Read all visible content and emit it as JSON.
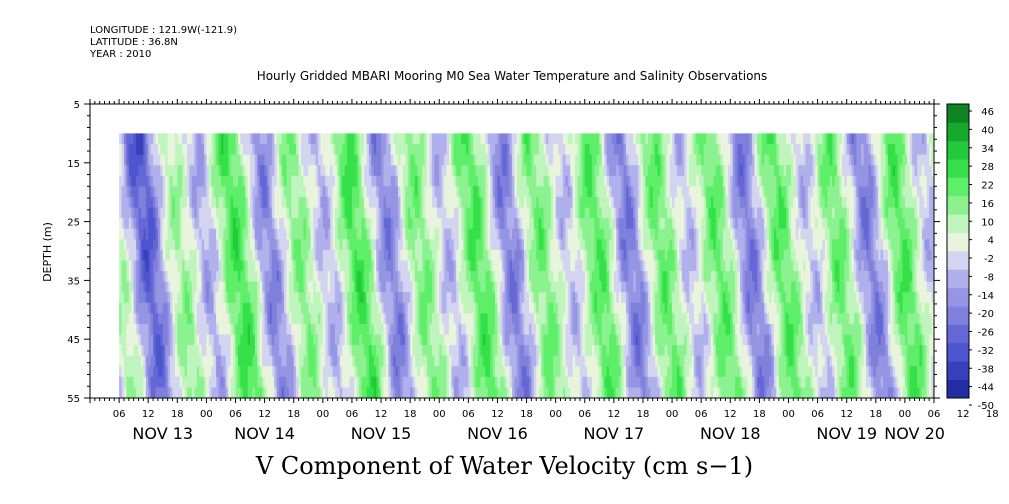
{
  "header": {
    "longitude": "LONGITUDE : 121.9W(-121.9)",
    "latitude": "LATITUDE : 36.8N",
    "year": "YEAR : 2010"
  },
  "chart_data": {
    "type": "heatmap",
    "title": "Hourly Gridded MBARI Mooring M0 Sea Water Temperature and Salinity Observations",
    "xlabel": "V Component of Water Velocity (cm s−1)",
    "ylabel": "DEPTH (m)",
    "ylim": [
      55,
      5
    ],
    "yticks": [
      5,
      15,
      25,
      35,
      45,
      55
    ],
    "yticks_labels": [
      "5",
      "15",
      "25",
      "35",
      "45",
      "55"
    ],
    "x_range_hours": [
      0,
      174
    ],
    "x_tick_labels": [
      "06",
      "12",
      "18",
      "00",
      "06",
      "12",
      "18",
      "00",
      "06",
      "12",
      "18",
      "00",
      "06",
      "12",
      "18",
      "00",
      "06",
      "12",
      "18",
      "00",
      "06",
      "12",
      "18",
      "00",
      "06",
      "12",
      "18",
      "00",
      "06",
      "12",
      "18",
      "00",
      "06"
    ],
    "x_day_labels": [
      {
        "label": "NOV 13",
        "hour": 15
      },
      {
        "label": "NOV 14",
        "hour": 36
      },
      {
        "label": "NOV 15",
        "hour": 60
      },
      {
        "label": "NOV 16",
        "hour": 84
      },
      {
        "label": "NOV 17",
        "hour": 108
      },
      {
        "label": "NOV 18",
        "hour": 132
      },
      {
        "label": "NOV 19",
        "hour": 156
      },
      {
        "label": "NOV 20",
        "hour": 170
      }
    ],
    "data_start_hour": 6,
    "data_depth_range": [
      10,
      55
    ],
    "colorbar": {
      "levels": [
        -50,
        -44,
        -38,
        -32,
        -26,
        -20,
        -14,
        -8,
        -2,
        4,
        10,
        16,
        22,
        28,
        34,
        40,
        46
      ],
      "labels": [
        "46",
        "40",
        "34",
        "28",
        "22",
        "16",
        "10",
        "4",
        "-2",
        "-8",
        "-14",
        "-20",
        "-26",
        "-32",
        "-38",
        "-44",
        "-50"
      ],
      "pos_colors": [
        "#e8f5dc",
        "#bff5bd",
        "#8cf290",
        "#5fee69",
        "#35e049",
        "#22c93a",
        "#17a82e",
        "#0e8424",
        "#07621b",
        "#034212"
      ],
      "neg_colors": [
        "#d3d4f0",
        "#b0b0ec",
        "#9595e3",
        "#7e80dc",
        "#6667d6",
        "#4d55cf",
        "#3640bd",
        "#232da4",
        "#141c84",
        "#0a1062",
        "#030844",
        "#010530"
      ]
    },
    "grid": false,
    "legend": "right"
  }
}
